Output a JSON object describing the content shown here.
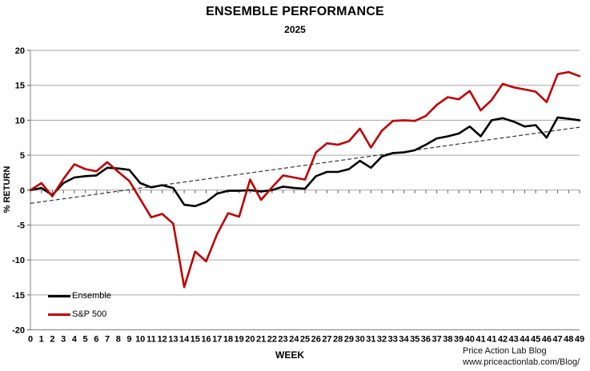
{
  "header": {
    "title": "ENSEMBLE PERFORMANCE",
    "subtitle": "2025"
  },
  "footer": {
    "line1": "Price Action Lab Blog",
    "line2": "www.priceactionlab.com/Blog/"
  },
  "chart_data": {
    "type": "line",
    "title": "ENSEMBLE PERFORMANCE",
    "subtitle": "2025",
    "xlabel": "WEEK",
    "ylabel": "% RETURN",
    "ylim": [
      -20,
      20
    ],
    "ytick_step": 5,
    "grid": true,
    "legend_position": "inside-bottom-left",
    "x_tick_labels": [
      "0",
      "1",
      "2",
      "3",
      "4",
      "5",
      "6",
      "7",
      "8",
      "9",
      "10",
      "11",
      "12",
      "13",
      "14",
      "15",
      "16",
      "17",
      "18",
      "19",
      "20",
      "21",
      "22",
      "23",
      "24",
      "25",
      "26",
      "27",
      "28",
      "29",
      "30",
      "31",
      "32",
      "33",
      "34",
      "35",
      "36",
      "37",
      "38",
      "39",
      "40",
      "41",
      "41",
      "42",
      "43",
      "44",
      "45",
      "46",
      "47",
      "48",
      "49"
    ],
    "series": [
      {
        "name": "Ensemble",
        "color": "#000000",
        "values": [
          0,
          0.3,
          -0.7,
          1.0,
          1.8,
          2.0,
          2.1,
          3.2,
          3.1,
          2.9,
          1.0,
          0.4,
          0.7,
          0.3,
          -2.1,
          -2.3,
          -1.7,
          -0.5,
          -0.1,
          -0.1,
          0,
          -0.2,
          0,
          0.5,
          0.3,
          0.2,
          2.0,
          2.6,
          2.6,
          3.0,
          4.2,
          3.2,
          4.8,
          5.3,
          5.4,
          5.7,
          6.5,
          7.4,
          7.7,
          8.1,
          9.1,
          7.7,
          10.0,
          10.3,
          9.8,
          9.1,
          9.3,
          7.5,
          10.4,
          10.2,
          10.0
        ]
      },
      {
        "name": "S&P 500",
        "color": "#c00000",
        "values": [
          0,
          1.0,
          -0.9,
          1.6,
          3.7,
          3.0,
          2.7,
          4.0,
          2.6,
          1.3,
          -1.3,
          -3.9,
          -3.4,
          -4.8,
          -13.9,
          -8.8,
          -10.2,
          -6.3,
          -3.3,
          -3.8,
          1.5,
          -1.4,
          0.4,
          2.1,
          1.8,
          1.5,
          5.4,
          6.7,
          6.5,
          7.0,
          8.8,
          6.1,
          8.5,
          9.9,
          10.0,
          9.9,
          10.6,
          12.2,
          13.3,
          13.0,
          14.2,
          11.4,
          12.9,
          15.2,
          14.7,
          14.4,
          14.1,
          12.6,
          16.6,
          16.9,
          16.3
        ]
      }
    ],
    "trend_line": {
      "style": "dashed",
      "color": "#333333",
      "start_value": -1.9,
      "end_value": 9.0
    },
    "colors": {
      "gridline": "#a6a6a6",
      "axis": "#7f7f7f",
      "tick": "#595959"
    }
  }
}
